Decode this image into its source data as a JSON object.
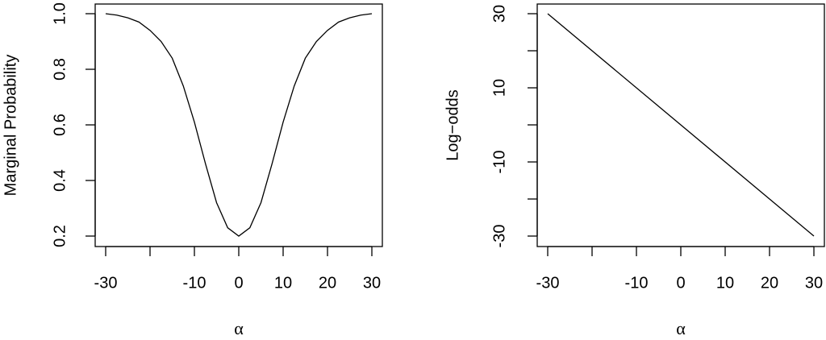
{
  "chart_data": [
    {
      "type": "line",
      "xlabel": "α",
      "ylabel": "Marginal Probability",
      "x": [
        -30,
        -27.5,
        -25,
        -22.5,
        -20,
        -17.5,
        -15,
        -12.5,
        -10,
        -7.5,
        -5,
        -2.5,
        0,
        2.5,
        5,
        7.5,
        10,
        12.5,
        15,
        17.5,
        20,
        22.5,
        25,
        27.5,
        30
      ],
      "series": [
        {
          "color": "#000000",
          "values": [
            1.0,
            0.995,
            0.985,
            0.97,
            0.94,
            0.9,
            0.84,
            0.74,
            0.61,
            0.46,
            0.32,
            0.23,
            0.2,
            0.23,
            0.32,
            0.46,
            0.61,
            0.74,
            0.84,
            0.9,
            0.94,
            0.97,
            0.985,
            0.995,
            1.0
          ]
        }
      ],
      "xlim": [
        -30,
        30
      ],
      "xticks": [
        -30,
        {
          "value": -20,
          "label": null
        },
        -10,
        0,
        10,
        20,
        30
      ],
      "ylim": [
        0.2,
        1.0
      ],
      "yticks": [
        0.2,
        0.4,
        0.6,
        0.8,
        {
          "value": 1,
          "label": "1.0"
        }
      ]
    },
    {
      "type": "line",
      "xlabel": "α",
      "ylabel": "Log−odds",
      "x": [
        -30,
        30
      ],
      "series": [
        {
          "color": "#000000",
          "values": [
            30,
            -30
          ]
        }
      ],
      "xlim": [
        -30,
        30
      ],
      "xticks": [
        -30,
        {
          "value": -20,
          "label": null
        },
        -10,
        0,
        10,
        20,
        30
      ],
      "ylim": [
        -30,
        30
      ],
      "yticks": [
        -30,
        {
          "value": -20,
          "label": null
        },
        -10,
        {
          "value": 0,
          "label": null
        },
        10,
        {
          "value": 20,
          "label": null
        },
        30
      ]
    }
  ]
}
